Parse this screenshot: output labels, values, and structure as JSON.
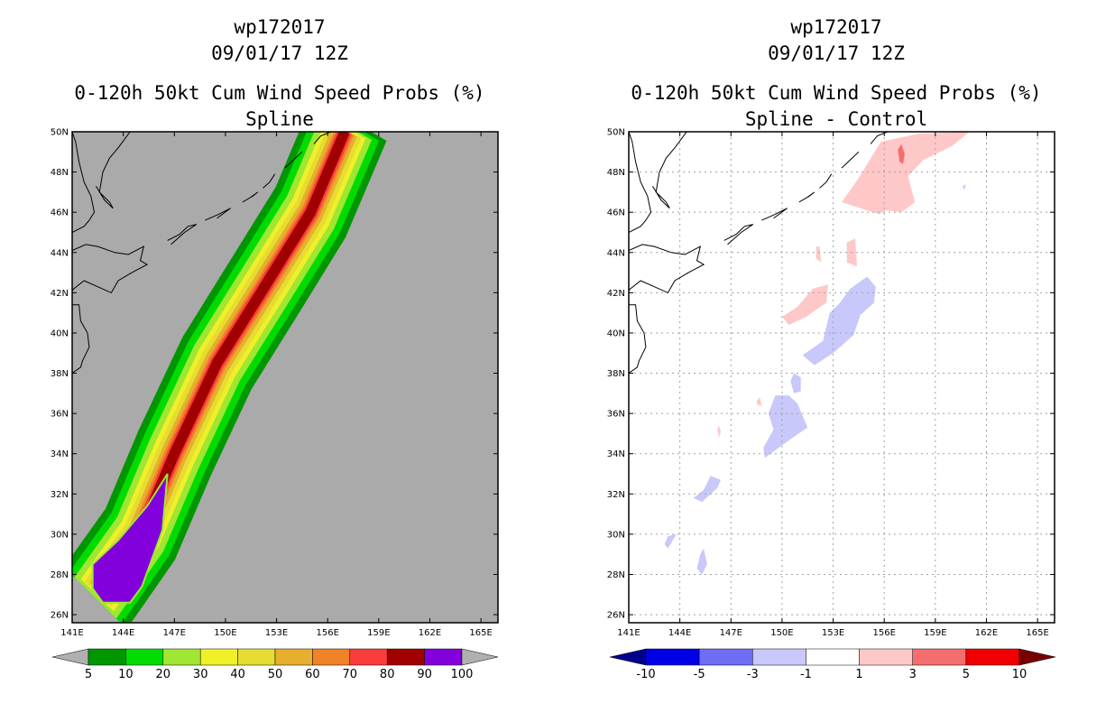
{
  "panels": [
    {
      "storm_id": "wp172017",
      "datetime": "09/01/17 12Z",
      "product": "0-120h 50kt Cum Wind Speed Probs (%)",
      "subtitle": "Spline",
      "colorbar": {
        "labels": [
          "5",
          "10",
          "20",
          "30",
          "40",
          "50",
          "60",
          "70",
          "80",
          "90",
          "100"
        ],
        "colors": [
          "#009600",
          "#00dc00",
          "#a0e632",
          "#f0f028",
          "#e6dc32",
          "#e6af2d",
          "#f08228",
          "#fa3c3c",
          "#a00000",
          "#8200dc"
        ],
        "under_color": "#b0b0b0",
        "over_color": "#b0b0b0"
      }
    },
    {
      "storm_id": "wp172017",
      "datetime": "09/01/17 12Z",
      "product": "0-120h 50kt Cum Wind Speed Probs (%)",
      "subtitle": "Spline - Control",
      "colorbar": {
        "labels": [
          "-10",
          "-5",
          "-3",
          "-1",
          "1",
          "3",
          "5",
          "10"
        ],
        "colors": [
          "#0000e6",
          "#6e6ef5",
          "#c8c8fa",
          "#ffffff",
          "#ffc8c8",
          "#f56e6e",
          "#f00000"
        ],
        "under_color": "#00008c",
        "over_color": "#780000"
      }
    }
  ],
  "chart_data": [
    {
      "type": "heatmap",
      "title": "0-120h 50kt Cum Wind Speed Probs (%)",
      "subtitle": "Spline",
      "units": "%",
      "x_ticks": [
        "141E",
        "144E",
        "147E",
        "150E",
        "153E",
        "156E",
        "159E",
        "162E",
        "165E"
      ],
      "y_ticks": [
        "26N",
        "28N",
        "30N",
        "32N",
        "34N",
        "36N",
        "38N",
        "40N",
        "42N",
        "44N",
        "46N",
        "48N",
        "50N"
      ],
      "xlim": [
        141,
        166
      ],
      "ylim": [
        25.6,
        50
      ],
      "background_color": "#aaaaaa",
      "track": [
        [
          143.0,
          27.6
        ],
        [
          145.0,
          30.0
        ],
        [
          147.0,
          34.0
        ],
        [
          149.5,
          38.5
        ],
        [
          152.3,
          42.3
        ],
        [
          155.0,
          46.0
        ],
        [
          157.0,
          50.0
        ]
      ],
      "contour_levels": [
        {
          "min": 5,
          "half_width": 2.4,
          "head": 1.0,
          "tail": 0.7
        },
        {
          "min": 10,
          "half_width": 2.0,
          "head": 1.0,
          "tail": 0.5
        },
        {
          "min": 20,
          "half_width": 1.6,
          "head": 1.0,
          "tail": 0.35
        },
        {
          "min": 30,
          "half_width": 1.25,
          "head": 0.82,
          "tail": 0.25
        },
        {
          "min": 40,
          "half_width": 1.0,
          "head": 0.75,
          "tail": 0.15
        },
        {
          "min": 50,
          "half_width": 0.75,
          "head": 0.62,
          "tail": 0.1
        },
        {
          "min": 60,
          "half_width": 0.55,
          "head": 0.5,
          "tail": 0.08
        },
        {
          "min": 70,
          "half_width": 0.42,
          "head": 0.4,
          "tail": 0.06
        },
        {
          "min": 80,
          "half_width": 0.3,
          "head": 0.32,
          "tail": 0.04
        }
      ],
      "max_region": {
        "min": 100,
        "polygon": [
          [
            142.2,
            27.3
          ],
          [
            142.8,
            26.6
          ],
          [
            144.4,
            26.6
          ],
          [
            145.1,
            27.4
          ],
          [
            146.3,
            30.2
          ],
          [
            146.6,
            33.0
          ],
          [
            145.4,
            31.4
          ],
          [
            143.7,
            29.7
          ],
          [
            142.2,
            28.5
          ]
        ]
      },
      "colorbar_labels": [
        5,
        10,
        20,
        30,
        40,
        50,
        60,
        70,
        80,
        90,
        100
      ]
    },
    {
      "type": "heatmap",
      "title": "0-120h 50kt Cum Wind Speed Probs (%)",
      "subtitle": "Spline - Control",
      "units": "%",
      "x_ticks": [
        "141E",
        "144E",
        "147E",
        "150E",
        "153E",
        "156E",
        "159E",
        "162E",
        "165E"
      ],
      "y_ticks": [
        "26N",
        "28N",
        "30N",
        "32N",
        "34N",
        "36N",
        "38N",
        "40N",
        "42N",
        "44N",
        "46N",
        "48N",
        "50N"
      ],
      "xlim": [
        141,
        166
      ],
      "ylim": [
        25.6,
        50
      ],
      "grid": true,
      "background_color": "#ffffff",
      "regions": [
        {
          "bin": "1 to 3",
          "color": "#ffc8c8",
          "polygon": [
            [
              153.5,
              46.5
            ],
            [
              154.5,
              47.7
            ],
            [
              155.8,
              49.5
            ],
            [
              158.0,
              49.9
            ],
            [
              161.0,
              50.0
            ],
            [
              160.0,
              49.3
            ],
            [
              158.3,
              48.6
            ],
            [
              157.4,
              47.8
            ],
            [
              157.8,
              46.5
            ],
            [
              157.0,
              46.0
            ],
            [
              156.1,
              46.1
            ],
            [
              155.7,
              45.9
            ]
          ]
        },
        {
          "bin": "3 to 5",
          "color": "#f56e6e",
          "polygon": [
            [
              156.8,
              49.1
            ],
            [
              157.0,
              49.4
            ],
            [
              157.2,
              48.9
            ],
            [
              157.1,
              48.4
            ],
            [
              156.9,
              48.5
            ]
          ]
        },
        {
          "bin": "1 to 3",
          "color": "#ffc8c8",
          "polygon": [
            [
              153.8,
              44.5
            ],
            [
              154.3,
              44.7
            ],
            [
              154.4,
              43.3
            ],
            [
              153.8,
              43.5
            ]
          ]
        },
        {
          "bin": "1 to 3",
          "color": "#ffc8c8",
          "polygon": [
            [
              152.0,
              44.3
            ],
            [
              152.2,
              44.3
            ],
            [
              152.3,
              43.5
            ],
            [
              152.0,
              43.7
            ]
          ]
        },
        {
          "bin": "1 to 3",
          "color": "#ffc8c8",
          "polygon": [
            [
              150.0,
              40.8
            ],
            [
              150.9,
              41.3
            ],
            [
              151.8,
              42.2
            ],
            [
              152.7,
              42.4
            ],
            [
              152.6,
              41.5
            ],
            [
              151.4,
              40.8
            ],
            [
              150.4,
              40.4
            ]
          ]
        },
        {
          "bin": "1 to 3",
          "color": "#ffc8c8",
          "polygon": [
            [
              146.3,
              35.4
            ],
            [
              146.4,
              35.1
            ],
            [
              146.3,
              34.8
            ],
            [
              146.2,
              35.2
            ]
          ]
        },
        {
          "bin": "1 to 3",
          "color": "#ffc8c8",
          "polygon": [
            [
              148.5,
              36.6
            ],
            [
              148.7,
              36.8
            ],
            [
              148.8,
              36.4
            ],
            [
              148.6,
              36.4
            ]
          ]
        },
        {
          "bin": "-3 to -1",
          "color": "#c8c8fa",
          "polygon": [
            [
              151.2,
              38.9
            ],
            [
              152.4,
              39.6
            ],
            [
              152.8,
              41.0
            ],
            [
              153.4,
              41.5
            ],
            [
              154.0,
              42.2
            ],
            [
              155.0,
              42.8
            ],
            [
              155.5,
              42.3
            ],
            [
              155.4,
              41.5
            ],
            [
              154.6,
              40.9
            ],
            [
              154.2,
              39.9
            ],
            [
              153.0,
              39.0
            ],
            [
              151.9,
              38.4
            ]
          ]
        },
        {
          "bin": "-3 to -1",
          "color": "#c8c8fa",
          "polygon": [
            [
              150.7,
              37.0
            ],
            [
              150.5,
              37.6
            ],
            [
              150.7,
              38.0
            ],
            [
              151.1,
              37.8
            ],
            [
              151.1,
              37.1
            ]
          ]
        },
        {
          "bin": "-3 to -1",
          "color": "#c8c8fa",
          "polygon": [
            [
              149.0,
              33.8
            ],
            [
              150.3,
              34.6
            ],
            [
              151.5,
              35.3
            ],
            [
              150.9,
              36.5
            ],
            [
              150.4,
              36.9
            ],
            [
              149.6,
              36.9
            ],
            [
              149.2,
              36.0
            ],
            [
              149.5,
              35.2
            ],
            [
              148.9,
              34.3
            ]
          ]
        },
        {
          "bin": "-3 to -1",
          "color": "#c8c8fa",
          "polygon": [
            [
              144.8,
              31.8
            ],
            [
              145.3,
              31.6
            ],
            [
              146.2,
              32.3
            ],
            [
              146.4,
              32.7
            ],
            [
              145.8,
              32.9
            ],
            [
              145.4,
              32.2
            ]
          ]
        },
        {
          "bin": "-3 to -1",
          "color": "#c8c8fa",
          "polygon": [
            [
              143.1,
              29.5
            ],
            [
              143.3,
              29.9
            ],
            [
              143.8,
              30.0
            ],
            [
              143.3,
              29.3
            ]
          ]
        },
        {
          "bin": "-3 to -1",
          "color": "#c8c8fa",
          "polygon": [
            [
              145.0,
              28.3
            ],
            [
              145.2,
              29.0
            ],
            [
              145.4,
              29.3
            ],
            [
              145.6,
              28.5
            ],
            [
              145.3,
              28.0
            ]
          ]
        },
        {
          "bin": "-3 to -1",
          "color": "#c8c8fa",
          "polygon": [
            [
              160.6,
              47.3
            ],
            [
              160.8,
              47.4
            ],
            [
              160.7,
              47.1
            ]
          ]
        }
      ],
      "colorbar_labels": [
        -10,
        -5,
        -3,
        -1,
        1,
        3,
        5,
        10
      ]
    }
  ]
}
